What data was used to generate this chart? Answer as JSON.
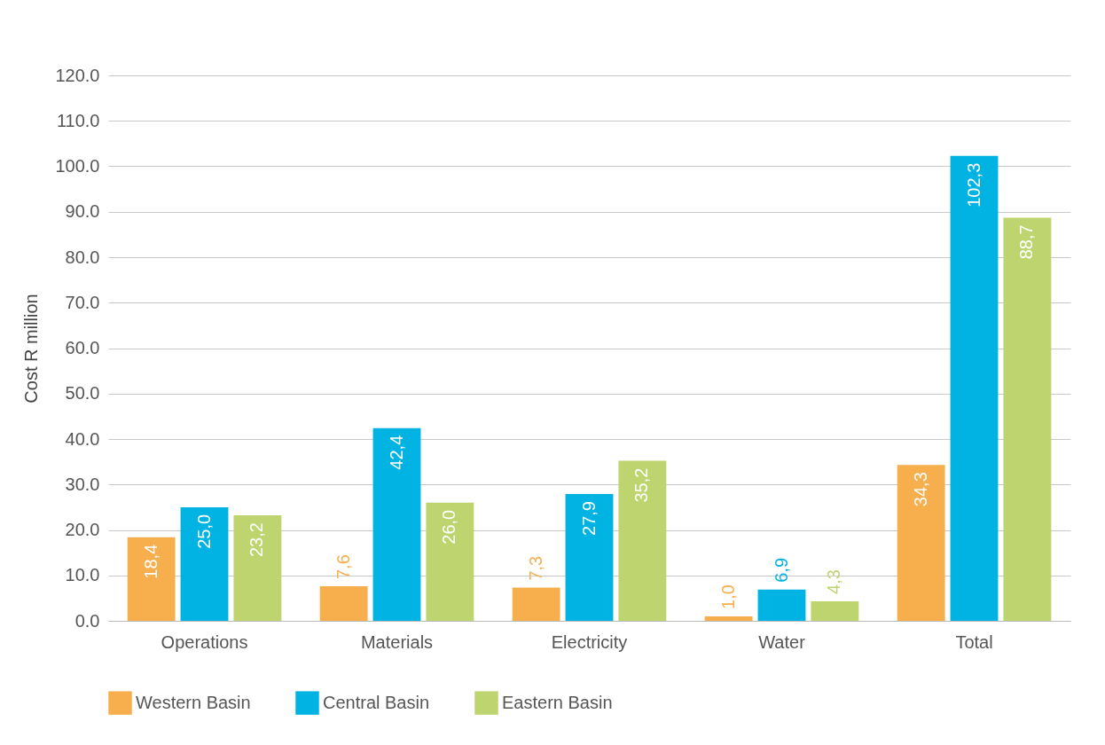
{
  "chart_data": {
    "type": "bar",
    "ylabel": "Cost R million",
    "categories": [
      "Operations",
      "Materials",
      "Electricity",
      "Water",
      "Total"
    ],
    "series": [
      {
        "name": "Western Basin",
        "color": "#f7ae4d",
        "values": [
          18.4,
          7.6,
          7.3,
          1.0,
          34.3
        ],
        "value_labels": [
          "18,4",
          "7,6",
          "7,3",
          "1,0",
          "34,3"
        ]
      },
      {
        "name": "Central Basin",
        "color": "#00b3e3",
        "values": [
          25.0,
          42.4,
          27.9,
          6.9,
          102.3
        ],
        "value_labels": [
          "25,0",
          "42,4",
          "27,9",
          "6,9",
          "102,3"
        ]
      },
      {
        "name": "Eastern Basin",
        "color": "#bdd46f",
        "values": [
          23.2,
          26.0,
          35.2,
          4.3,
          88.7
        ],
        "value_labels": [
          "23,2",
          "26,0",
          "35,2",
          "4,3",
          "88,7"
        ]
      }
    ],
    "ylim": [
      0,
      120
    ],
    "yticks": [
      {
        "value": 0,
        "label": "0.0"
      },
      {
        "value": 10,
        "label": "10.0"
      },
      {
        "value": 20,
        "label": "20.0"
      },
      {
        "value": 30,
        "label": "30.0"
      },
      {
        "value": 40,
        "label": "40.0"
      },
      {
        "value": 50,
        "label": "50.0"
      },
      {
        "value": 60,
        "label": "60.0"
      },
      {
        "value": 70,
        "label": "70.0"
      },
      {
        "value": 80,
        "label": "80.0"
      },
      {
        "value": 90,
        "label": "90.0"
      },
      {
        "value": 100,
        "label": "100.0"
      },
      {
        "value": 110,
        "label": "110.0"
      },
      {
        "value": 120,
        "label": "120.0"
      }
    ],
    "grid": "y",
    "legend": "bottom"
  }
}
